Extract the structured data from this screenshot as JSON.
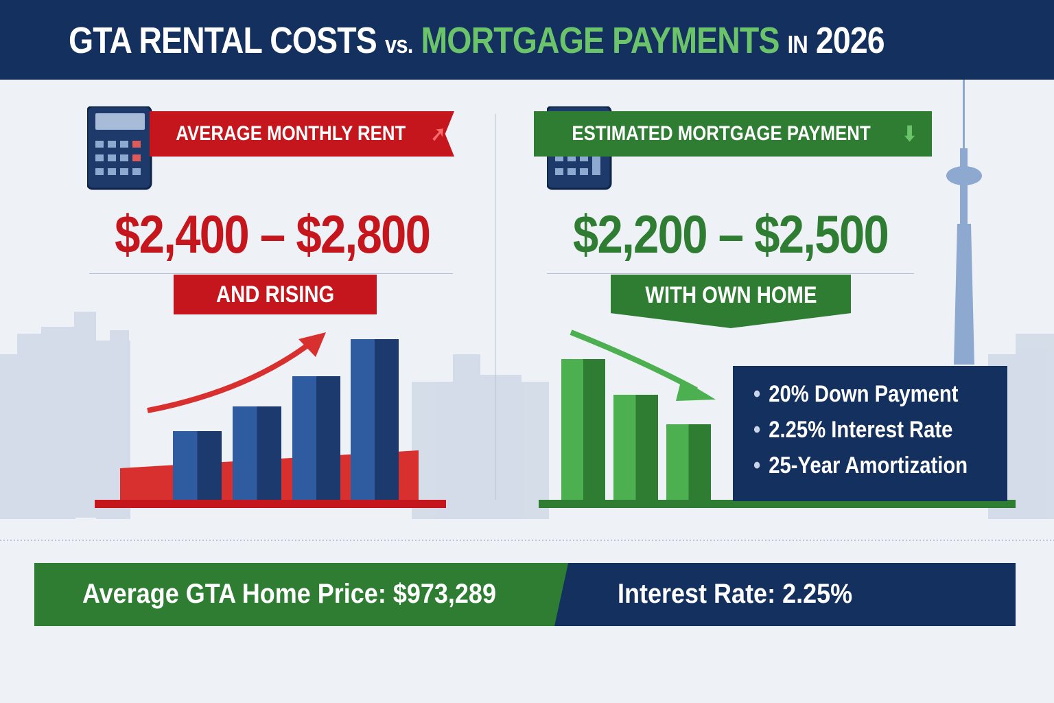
{
  "title": {
    "part1": "GTA RENTAL COSTS",
    "vs": "vs.",
    "part2": "MORTGAGE PAYMENTS",
    "in": "IN",
    "year": "2026"
  },
  "rent": {
    "banner": "AVERAGE MONTHLY RENT",
    "range": "$2,400 – $2,800",
    "tag": "AND RISING",
    "trend": "up",
    "color": "#c4161c"
  },
  "mortgage": {
    "banner": "ESTIMATED MORTGAGE PAYMENT",
    "range": "$2,200 – $2,500",
    "tag": "WITH OWN HOME",
    "trend": "down",
    "color": "#2e7d32"
  },
  "assumptions": [
    "20% Down Payment",
    "2.25% Interest Rate",
    "25-Year Amortization"
  ],
  "footer": {
    "home_price": "Average GTA Home Price: $973,289",
    "interest": "Interest Rate: 2.25%"
  },
  "colors": {
    "navy": "#13305e",
    "red": "#c4161c",
    "green": "#2e7d32",
    "bar_blue": "#2a4f8f"
  }
}
